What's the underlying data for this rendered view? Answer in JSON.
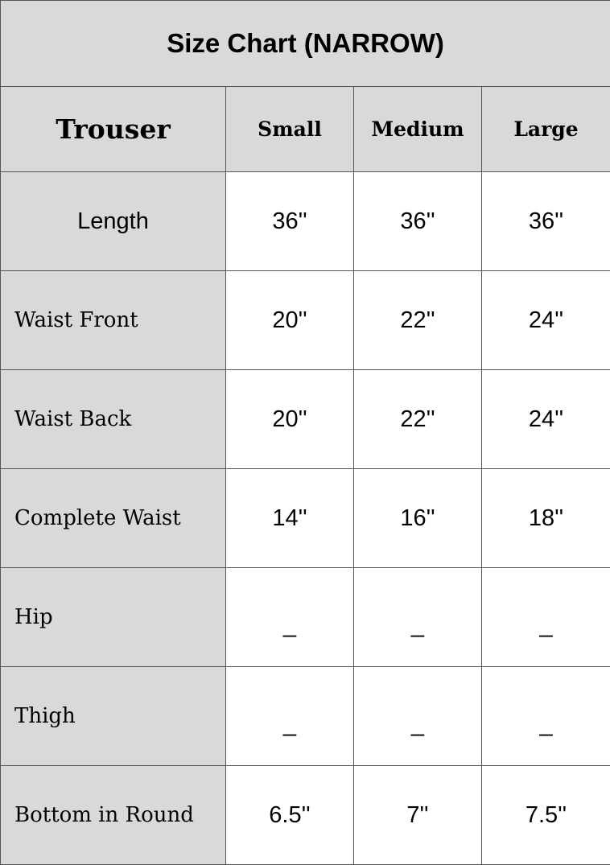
{
  "title": "Size Chart (NARROW)",
  "header": {
    "category": "Trouser",
    "sizes": [
      "Small",
      "Medium",
      "Large"
    ]
  },
  "rows": [
    {
      "label": "Length",
      "values": [
        "36''",
        "36''",
        "36''"
      ]
    },
    {
      "label": "Waist Front",
      "values": [
        "20''",
        "22''",
        "24''"
      ]
    },
    {
      "label": "Waist Back",
      "values": [
        "20''",
        "22''",
        "24''"
      ]
    },
    {
      "label": "Complete Waist",
      "values": [
        "14''",
        "16''",
        "18''"
      ]
    },
    {
      "label": "Hip",
      "values": [
        "_",
        "_",
        "_"
      ]
    },
    {
      "label": "Thigh",
      "values": [
        "_",
        "_",
        "_"
      ]
    },
    {
      "label": "Bottom in Round",
      "values": [
        "6.5''",
        "7''",
        "7.5''"
      ]
    }
  ],
  "colors": {
    "header_bg": "#d9d9d9",
    "cell_bg": "#ffffff",
    "border": "#555555"
  }
}
